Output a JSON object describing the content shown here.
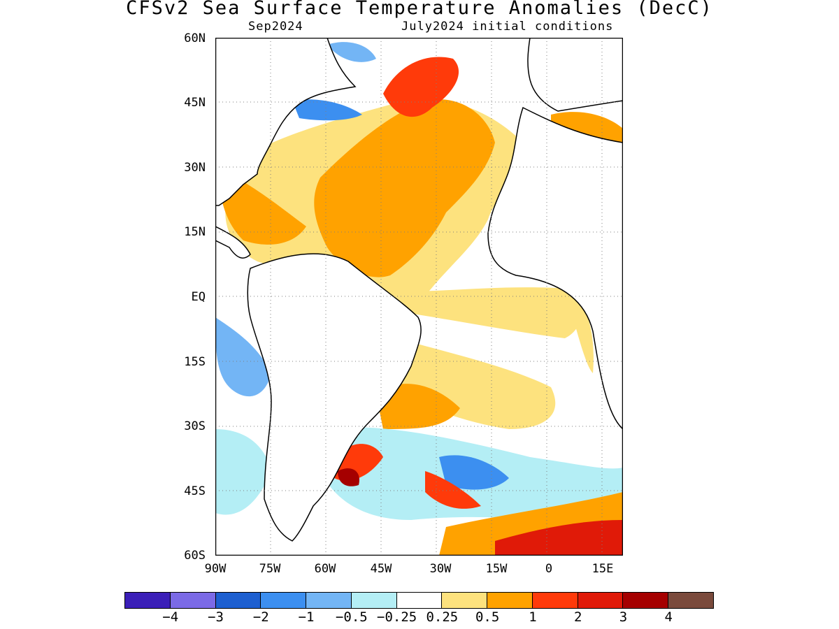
{
  "title": "CFSv2 Sea Surface Temperature Anomalies (DecC)",
  "valid_month": "Sep2024",
  "init_conditions": "July2024 initial conditions",
  "lat_labels": [
    "60N",
    "45N",
    "30N",
    "15N",
    "EQ",
    "15S",
    "30S",
    "45S",
    "60S"
  ],
  "lon_labels": [
    "90W",
    "75W",
    "60W",
    "45W",
    "30W",
    "15W",
    "0",
    "15E"
  ],
  "colorbar": {
    "colors": [
      "#3b1fb8",
      "#7b6ae6",
      "#1d5fd0",
      "#3c8ff0",
      "#73b5f5",
      "#b4eef5",
      "#ffffff",
      "#fde27e",
      "#ffa200",
      "#ff3a0a",
      "#e01a08",
      "#a50000",
      "#7a4a3c"
    ],
    "labels": [
      "−4",
      "−3",
      "−2",
      "−1",
      "−0.5",
      "−0.25",
      "0.25",
      "0.5",
      "1",
      "2",
      "3",
      "4"
    ]
  },
  "map_colors": {
    "land_outline": "#000000",
    "grid": "#7f7f7f"
  }
}
